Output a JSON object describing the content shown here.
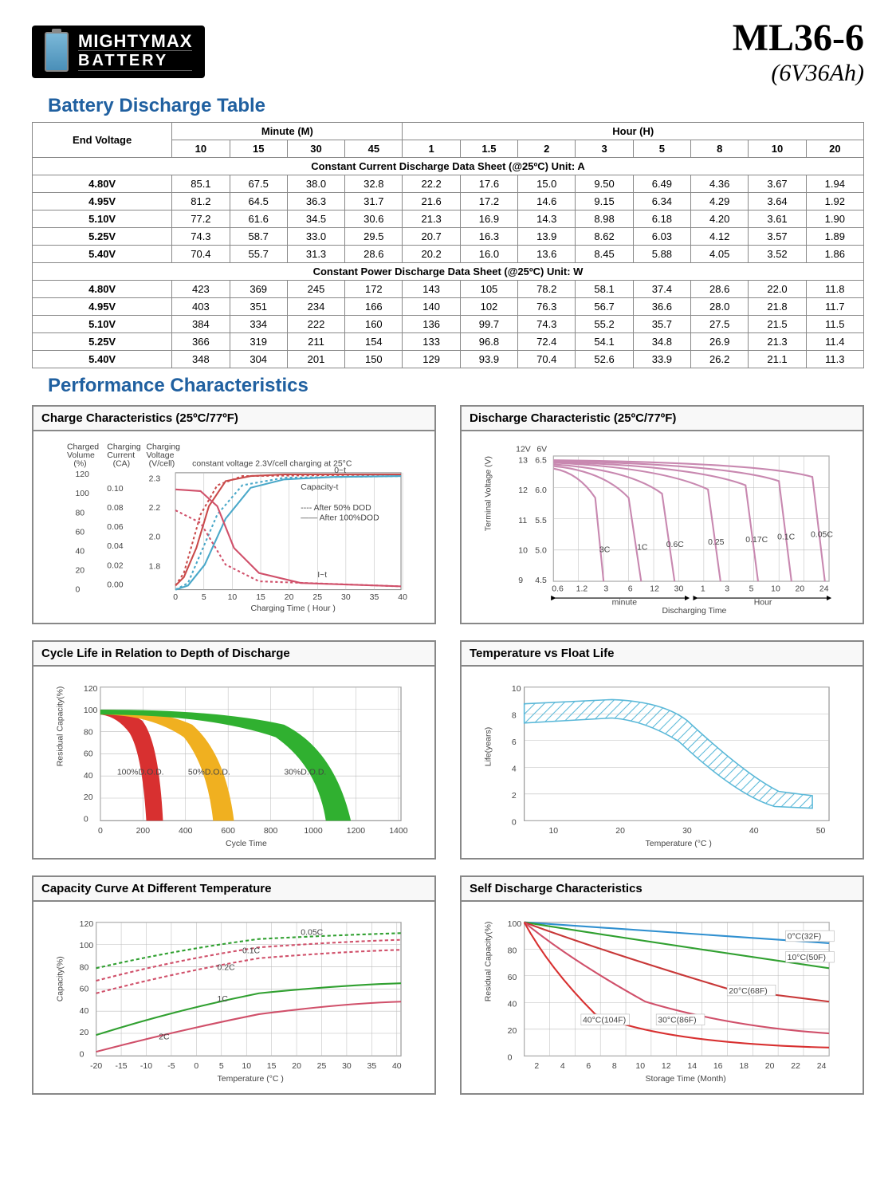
{
  "header": {
    "logo_top": "MIGHTYMAX",
    "logo_bottom": "BATTERY",
    "model_number": "ML36-6",
    "model_spec": "(6V36Ah)"
  },
  "sections": {
    "discharge_title": "Battery Discharge Table",
    "perf_title": "Performance Characteristics"
  },
  "discharge_table": {
    "end_voltage_label": "End Voltage",
    "minute_label": "Minute (M)",
    "hour_label": "Hour (H)",
    "minute_cols": [
      "10",
      "15",
      "30",
      "45"
    ],
    "hour_cols": [
      "1",
      "1.5",
      "2",
      "3",
      "5",
      "8",
      "10",
      "20"
    ],
    "current_header": "Constant Current Discharge Data Sheet   (@25ºC)   Unit: A",
    "power_header": "Constant Power Discharge Data Sheet   (@25ºC)   Unit: W",
    "current_rows": [
      {
        "v": "4.80V",
        "d": [
          "85.1",
          "67.5",
          "38.0",
          "32.8",
          "22.2",
          "17.6",
          "15.0",
          "9.50",
          "6.49",
          "4.36",
          "3.67",
          "1.94"
        ]
      },
      {
        "v": "4.95V",
        "d": [
          "81.2",
          "64.5",
          "36.3",
          "31.7",
          "21.6",
          "17.2",
          "14.6",
          "9.15",
          "6.34",
          "4.29",
          "3.64",
          "1.92"
        ]
      },
      {
        "v": "5.10V",
        "d": [
          "77.2",
          "61.6",
          "34.5",
          "30.6",
          "21.3",
          "16.9",
          "14.3",
          "8.98",
          "6.18",
          "4.20",
          "3.61",
          "1.90"
        ]
      },
      {
        "v": "5.25V",
        "d": [
          "74.3",
          "58.7",
          "33.0",
          "29.5",
          "20.7",
          "16.3",
          "13.9",
          "8.62",
          "6.03",
          "4.12",
          "3.57",
          "1.89"
        ]
      },
      {
        "v": "5.40V",
        "d": [
          "70.4",
          "55.7",
          "31.3",
          "28.6",
          "20.2",
          "16.0",
          "13.6",
          "8.45",
          "5.88",
          "4.05",
          "3.52",
          "1.86"
        ]
      }
    ],
    "power_rows": [
      {
        "v": "4.80V",
        "d": [
          "423",
          "369",
          "245",
          "172",
          "143",
          "105",
          "78.2",
          "58.1",
          "37.4",
          "28.6",
          "22.0",
          "11.8"
        ]
      },
      {
        "v": "4.95V",
        "d": [
          "403",
          "351",
          "234",
          "166",
          "140",
          "102",
          "76.3",
          "56.7",
          "36.6",
          "28.0",
          "21.8",
          "11.7"
        ]
      },
      {
        "v": "5.10V",
        "d": [
          "384",
          "334",
          "222",
          "160",
          "136",
          "99.7",
          "74.3",
          "55.2",
          "35.7",
          "27.5",
          "21.5",
          "11.5"
        ]
      },
      {
        "v": "5.25V",
        "d": [
          "366",
          "319",
          "211",
          "154",
          "133",
          "96.8",
          "72.4",
          "54.1",
          "34.8",
          "26.9",
          "21.3",
          "11.4"
        ]
      },
      {
        "v": "5.40V",
        "d": [
          "348",
          "304",
          "201",
          "150",
          "129",
          "93.9",
          "70.4",
          "52.6",
          "33.9",
          "26.2",
          "21.1",
          "11.3"
        ]
      }
    ]
  },
  "charts": {
    "charge": {
      "title": "Charge Characteristics (25ºC/77ºF)",
      "col_headers": [
        "Charged\nVolume\n(%)",
        "Charging\nCurrent\n(CA)",
        "Charging\nVoltage\n(V/cell)"
      ],
      "subtitle": "constant voltage 2.3V/cell charging at 25°C",
      "y1_ticks": [
        "120",
        "100",
        "80",
        "60",
        "40",
        "20",
        "0"
      ],
      "y2_ticks": [
        "0.10",
        "0.08",
        "0.06",
        "0.04",
        "0.02",
        "0.00"
      ],
      "y3_ticks": [
        "2.3",
        "2.2",
        "2.0",
        "1.8"
      ],
      "x_ticks": [
        "0",
        "5",
        "10",
        "15",
        "20",
        "25",
        "30",
        "35",
        "40"
      ],
      "x_label": "Charging Time ( Hour )",
      "legend": [
        "---- After 50% DOD",
        "—— After 100%DOD"
      ],
      "labels": {
        "capacity": "Capacity-t",
        "current": "I~t",
        "voltage": "0~t"
      },
      "colors": {
        "grid": "#cccccc",
        "volt": "#c94a4a",
        "cap": "#4aa8c9",
        "cur": "#d0506a"
      }
    },
    "discharge": {
      "title": "Discharge Characteristic (25ºC/77ºF)",
      "y12_label": "12V",
      "y6_label": "6V",
      "y12_ticks": [
        "13",
        "12",
        "11",
        "10",
        "9"
      ],
      "y6_ticks": [
        "6.5",
        "6.0",
        "5.5",
        "5.0",
        "4.5"
      ],
      "y_axis": "Terminal Voltage (V)",
      "x_ticks_min": [
        "0.6",
        "1.2",
        "3",
        "6",
        "12",
        "30"
      ],
      "x_ticks_hr": [
        "1",
        "3",
        "5",
        "10",
        "20",
        "24"
      ],
      "x_label": "Discharging Time",
      "x_sub": [
        "minute",
        "Hour"
      ],
      "curve_labels": [
        "3C",
        "1C",
        "0.6C",
        "0.25",
        "0.17C",
        "0.1C",
        "0.05C"
      ],
      "colors": {
        "grid": "#d8b8c8",
        "line": "#c888b0",
        "label": "#5aa8c8"
      }
    },
    "cycle": {
      "title": "Cycle Life in Relation to Depth of Discharge",
      "y_label": "Residual Capacity(%)",
      "y_ticks": [
        "120",
        "100",
        "80",
        "60",
        "40",
        "20",
        "0"
      ],
      "x_label": "Cycle Time",
      "x_ticks": [
        "0",
        "200",
        "400",
        "600",
        "800",
        "1000",
        "1200",
        "1400"
      ],
      "series": [
        {
          "label": "100%D.O.D.",
          "color": "#d83030"
        },
        {
          "label": "50%D.O.D.",
          "color": "#f0b020"
        },
        {
          "label": "30%D.O.D.",
          "color": "#30b030"
        }
      ],
      "label_color": "#5aa8c8"
    },
    "temp_float": {
      "title": "Temperature vs Float Life",
      "y_label": "Life(years)",
      "y_ticks": [
        "10",
        "8",
        "6",
        "4",
        "2",
        "0"
      ],
      "x_label": "Temperature (°C )",
      "x_ticks": [
        "10",
        "20",
        "30",
        "40",
        "50"
      ],
      "band_color": "#5ab8d8"
    },
    "cap_temp": {
      "title": "Capacity Curve At Different Temperature",
      "y_label": "Capacity(%)",
      "y_ticks": [
        "120",
        "100",
        "80",
        "60",
        "40",
        "20",
        "0"
      ],
      "x_label": "Temperature (°C )",
      "x_ticks": [
        "-20",
        "-15",
        "-10",
        "-5",
        "0",
        "5",
        "10",
        "15",
        "20",
        "25",
        "30",
        "35",
        "40"
      ],
      "curves": [
        {
          "label": "0.05C",
          "color": "#30a030",
          "dash": "4,3"
        },
        {
          "label": "0.1C",
          "color": "#d0506a",
          "dash": "4,3"
        },
        {
          "label": "0.2C",
          "color": "#d0506a",
          "dash": "4,3"
        },
        {
          "label": "1C",
          "color": "#30a030",
          "dash": ""
        },
        {
          "label": "2C",
          "color": "#d0506a",
          "dash": ""
        }
      ],
      "label_color": "#5aa8c8"
    },
    "self_discharge": {
      "title": "Self Discharge Characteristics",
      "y_label": "Residual Capacity(%)",
      "y_ticks": [
        "100",
        "80",
        "60",
        "40",
        "20",
        "0"
      ],
      "x_label": "Storage Time (Month)",
      "x_ticks": [
        "2",
        "4",
        "6",
        "8",
        "10",
        "12",
        "14",
        "16",
        "18",
        "20",
        "22",
        "24"
      ],
      "curves": [
        {
          "label": "0°C(32F)",
          "color": "#3090d0"
        },
        {
          "label": "10°C(50F)",
          "color": "#30a030"
        },
        {
          "label": "20°C(68F)",
          "color": "#c83838"
        },
        {
          "label": "30°C(86F)",
          "color": "#d0506a"
        },
        {
          "label": "40°C(104F)",
          "color": "#d83030"
        }
      ],
      "label_color": "#5aa8c8"
    }
  }
}
